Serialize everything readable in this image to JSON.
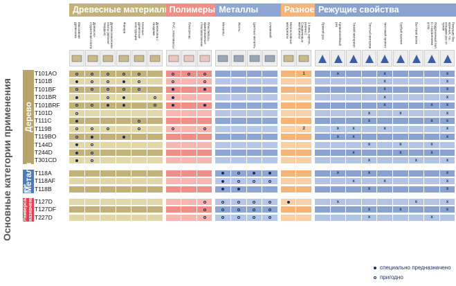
{
  "title_vertical": "Основные категории применения",
  "categories": [
    {
      "label": "Дерево",
      "color": "#b8a46a"
    },
    {
      "label": "Металл",
      "color": "#4e78b8"
    },
    {
      "label": "Универсальное назначение",
      "color": "#e04050"
    }
  ],
  "groups": [
    {
      "label": "Древесные материалы",
      "color": "#c2b178",
      "light": "#e2d7a8",
      "cols": 6
    },
    {
      "label": "Полимеры",
      "color": "#ef8f87",
      "light": "#f5b7af",
      "cols": 3
    },
    {
      "label": "Металлы",
      "color": "#8ea6d4",
      "light": "#b6c6e6",
      "cols": 4
    },
    {
      "label": "Разное",
      "color": "#f5b478",
      "light": "#f9d0a6",
      "cols": 2
    },
    {
      "label": "Режущие свойства",
      "color": "#8aa2cf",
      "light": "#b3c3e2",
      "cols": 9
    }
  ],
  "column_headers": [
    "Массивная древесина",
    "Древесно-стружечная плита",
    "Древесноволокнистые плиты (мягкие/твердые)",
    "Фанера",
    "Клееные древесные конструкции",
    "Древесина с гвоздями",
    "PVC, пластмассы",
    "Плексиглас",
    "Пластмассы, армированные стекловолокном",
    "Металлы",
    "Жесть",
    "Цветные металлы",
    "Алюминий",
    "Многослойные материалы",
    "1 Кожа, картон, резина 2 Сэндвичевые материалы",
    "Прямой рез",
    "Криволинейный рез",
    "Тонкий материал",
    "Толстый материал",
    "Чистовой пропил",
    "Грубый пропил",
    "Быстрая резка",
    "Подрезочный пил (с сохранением угла)",
    "Режущие без крупных, т.е. концами рез от тужки"
  ],
  "rows": [
    {
      "name": "T101AO",
      "cat": 0,
      "cells": [
        "r",
        "r",
        "r",
        "r",
        "r",
        "",
        "r",
        "r",
        "r",
        "",
        "",
        "",
        "",
        "",
        "1",
        "",
        "x",
        "",
        "",
        "x",
        "",
        "",
        "",
        "x"
      ]
    },
    {
      "name": "T101B",
      "cat": 0,
      "cells": [
        "d",
        "r",
        "r",
        "d",
        "r",
        "",
        "r",
        "",
        "r",
        "",
        "",
        "",
        "",
        "",
        "",
        "",
        "",
        "",
        "",
        "x",
        "",
        "",
        "",
        "x"
      ]
    },
    {
      "name": "T101BF",
      "cat": 0,
      "cells": [
        "r",
        "r",
        "r",
        "r",
        "r",
        "",
        "d",
        "",
        "d",
        "",
        "",
        "",
        "",
        "",
        "",
        "",
        "",
        "",
        "",
        "x",
        "",
        "",
        "",
        "x"
      ]
    },
    {
      "name": "T101BR",
      "cat": 0,
      "cells": [
        "d",
        "",
        "r",
        "d",
        "",
        "r",
        "d",
        "",
        "",
        "",
        "",
        "",
        "",
        "",
        "",
        "",
        "",
        "",
        "",
        "x",
        "",
        "",
        "",
        "x"
      ]
    },
    {
      "name": "T101BRF",
      "cat": 0,
      "cells": [
        "r",
        "r",
        "d",
        "d",
        "",
        "r",
        "d",
        "",
        "d",
        "",
        "",
        "",
        "",
        "",
        "",
        "",
        "",
        "",
        "",
        "x",
        "",
        "",
        "x",
        "x"
      ]
    },
    {
      "name": "T101D",
      "cat": 0,
      "cells": [
        "r",
        "",
        "",
        "",
        "",
        "",
        "",
        "",
        "",
        "",
        "",
        "",
        "",
        "",
        "",
        "",
        "",
        "",
        "x",
        "",
        "x",
        "",
        "",
        "x"
      ]
    },
    {
      "name": "T111C",
      "cat": 0,
      "cells": [
        "d",
        "",
        "",
        "",
        "r",
        "",
        "",
        "",
        "",
        "",
        "",
        "",
        "",
        "",
        "",
        "",
        "",
        "",
        "x",
        "",
        "",
        "",
        "x",
        "x"
      ]
    },
    {
      "name": "T119B",
      "cat": 0,
      "cells": [
        "r",
        "r",
        "r",
        "",
        "r",
        "",
        "r",
        "",
        "r",
        "",
        "",
        "",
        "",
        "",
        "2",
        "",
        "x",
        "x",
        "",
        "x",
        "",
        "",
        "",
        "x"
      ]
    },
    {
      "name": "T119BO",
      "cat": 0,
      "cells": [
        "r",
        "d",
        "",
        "d",
        "",
        "",
        "",
        "",
        "",
        "",
        "",
        "",
        "",
        "",
        "",
        "",
        "x",
        "x",
        "",
        "",
        "",
        "",
        "",
        "x"
      ]
    },
    {
      "name": "T144D",
      "cat": 0,
      "cells": [
        "d",
        "r",
        "",
        "",
        "",
        "",
        "",
        "",
        "",
        "",
        "",
        "",
        "",
        "",
        "",
        "",
        "",
        "",
        "x",
        "",
        "x",
        "",
        "x",
        ""
      ]
    },
    {
      "name": "T244D",
      "cat": 0,
      "cells": [
        "d",
        "r",
        "",
        "",
        "",
        "",
        "",
        "",
        "",
        "",
        "",
        "",
        "",
        "",
        "",
        "",
        "",
        "x",
        "",
        "",
        "x",
        "",
        "x",
        ""
      ]
    },
    {
      "name": "T301CD",
      "cat": 0,
      "cells": [
        "d",
        "r",
        "",
        "",
        "",
        "",
        "",
        "",
        "",
        "",
        "",
        "",
        "",
        "",
        "",
        "",
        "",
        "",
        "x",
        "",
        "",
        "x",
        "",
        "x"
      ]
    },
    {
      "name": "T118A",
      "cat": 1,
      "cells": [
        "",
        "",
        "",
        "",
        "",
        "",
        "",
        "",
        "",
        "d",
        "r",
        "d",
        "d",
        "",
        "",
        "",
        "x",
        "",
        "x",
        "",
        "",
        "",
        "",
        "x"
      ]
    },
    {
      "name": "T118AF",
      "cat": 1,
      "cells": [
        "",
        "",
        "",
        "",
        "",
        "",
        "",
        "",
        "",
        "d",
        "r",
        "r",
        "r",
        "",
        "",
        "",
        "",
        "x",
        "",
        "x",
        "",
        "",
        "",
        "x"
      ]
    },
    {
      "name": "T118B",
      "cat": 1,
      "cells": [
        "",
        "",
        "",
        "",
        "",
        "",
        "",
        "",
        "",
        "d",
        "d",
        "",
        "",
        "",
        "",
        "",
        "",
        "",
        "x",
        "",
        "",
        "",
        "",
        "x"
      ]
    },
    {
      "name": "T127D",
      "cat": 2,
      "cells": [
        "",
        "",
        "",
        "",
        "",
        "",
        "",
        "",
        "r",
        "r",
        "r",
        "r",
        "r",
        "d",
        "",
        "",
        "x",
        "",
        "",
        "",
        "",
        "x",
        "",
        "x"
      ]
    },
    {
      "name": "T127DF",
      "cat": 2,
      "cells": [
        "",
        "",
        "",
        "",
        "",
        "",
        "",
        "",
        "r",
        "r",
        "r",
        "r",
        "r",
        "",
        "",
        "",
        "",
        "",
        "x",
        "",
        "x",
        "",
        "",
        "x"
      ]
    },
    {
      "name": "T227D",
      "cat": 2,
      "cells": [
        "",
        "",
        "",
        "",
        "",
        "",
        "",
        "",
        "r",
        "r",
        "r",
        "r",
        "r",
        "",
        "",
        "",
        "",
        "",
        "x",
        "",
        "",
        "",
        "x",
        ""
      ]
    }
  ],
  "legend": [
    {
      "symbol": "dot",
      "label": "специально предназначено"
    },
    {
      "symbol": "ring",
      "label": "пригодно"
    }
  ]
}
